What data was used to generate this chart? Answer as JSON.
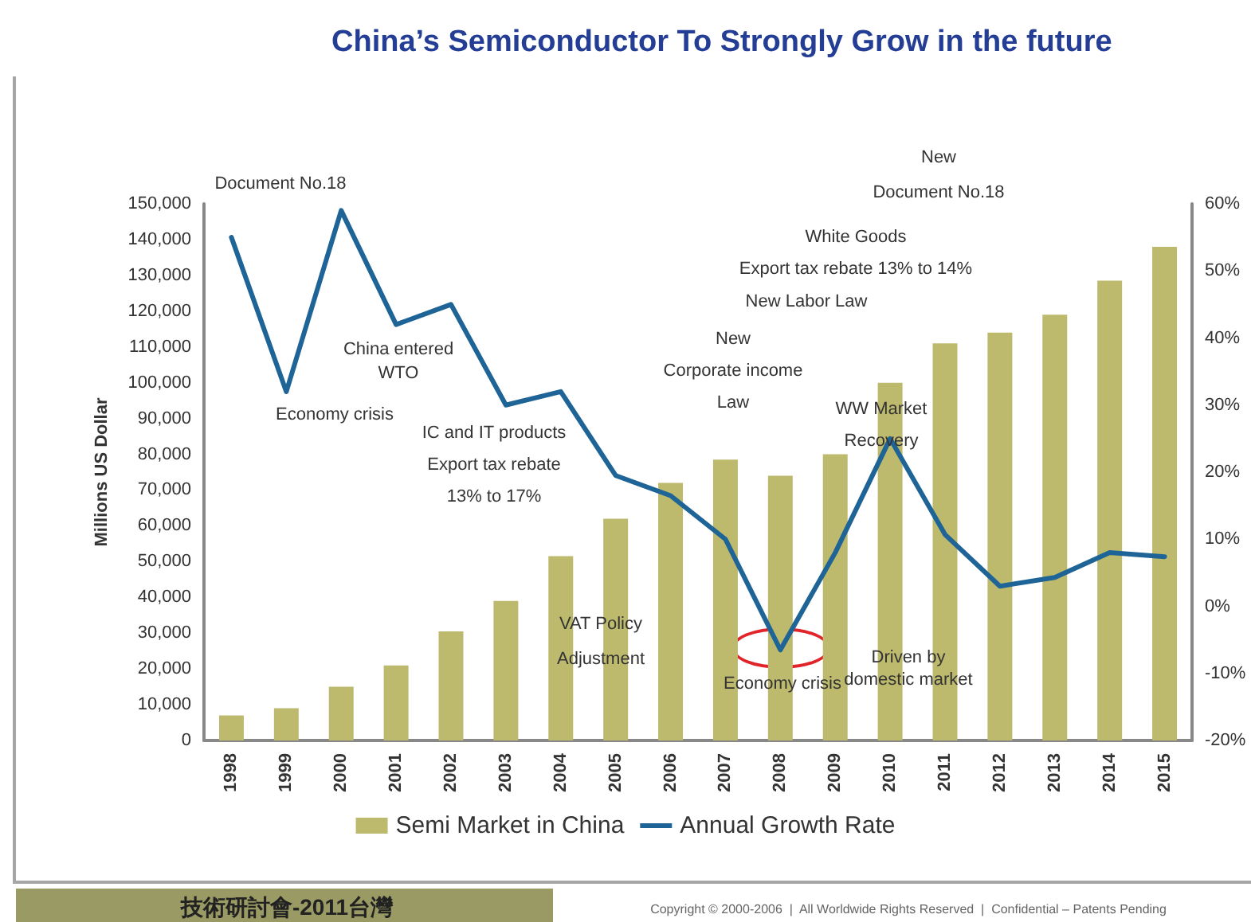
{
  "chart_data": {
    "type": "bar",
    "title": "China’s Semiconductor To Strongly Grow in the future",
    "ylabel": "Millions US Dollar",
    "categories": [
      "1998",
      "1999",
      "2000",
      "2001",
      "2002",
      "2003",
      "2004",
      "2005",
      "2006",
      "2007",
      "2008",
      "2009",
      "2010",
      "2011",
      "2012",
      "2013",
      "2014",
      "2015"
    ],
    "series": [
      {
        "name": "Semi Market in China",
        "color": "#bdba6e",
        "values": [
          7000,
          9000,
          15000,
          21000,
          30500,
          39000,
          51500,
          62000,
          72000,
          78500,
          74000,
          80000,
          100000,
          111000,
          114000,
          119000,
          128500,
          138000
        ]
      },
      {
        "name": "Annual Growth Rate",
        "type": "line",
        "axis": "y2",
        "color": "#1f6496",
        "values": [
          55,
          32,
          59,
          42,
          45,
          30,
          32,
          19.5,
          16.5,
          10,
          -6.5,
          8,
          25,
          10.7,
          3,
          4.3,
          8,
          7.4
        ]
      }
    ],
    "ylim": [
      0,
      150000
    ],
    "yticks": [
      {
        "value": 0,
        "label": "0"
      },
      {
        "value": 10000,
        "label": "10,000"
      },
      {
        "value": 20000,
        "label": "20,000"
      },
      {
        "value": 30000,
        "label": "30,000"
      },
      {
        "value": 40000,
        "label": "40,000"
      },
      {
        "value": 50000,
        "label": "50,000"
      },
      {
        "value": 60000,
        "label": "60,000"
      },
      {
        "value": 70000,
        "label": "70,000"
      },
      {
        "value": 80000,
        "label": "80,000"
      },
      {
        "value": 90000,
        "label": "90,000"
      },
      {
        "value": 100000,
        "label": "100,000"
      },
      {
        "value": 110000,
        "label": "110,000"
      },
      {
        "value": 120000,
        "label": "120,000"
      },
      {
        "value": 130000,
        "label": "130,000"
      },
      {
        "value": 140000,
        "label": "140,000"
      },
      {
        "value": 150000,
        "label": "150,000"
      }
    ],
    "y2lim": [
      -20,
      60
    ],
    "y2ticks": [
      {
        "value": -20,
        "label": "-20%"
      },
      {
        "value": -10,
        "label": "-10%"
      },
      {
        "value": 0,
        "label": "0%"
      },
      {
        "value": 10,
        "label": "10%"
      },
      {
        "value": 20,
        "label": "20%"
      },
      {
        "value": 30,
        "label": "30%"
      },
      {
        "value": 40,
        "label": "40%"
      },
      {
        "value": 50,
        "label": "50%"
      },
      {
        "value": 60,
        "label": "60%"
      }
    ],
    "annotations": [
      "Document No.18",
      "Economy crisis",
      "China entered\nWTO",
      "IC and IT products\nExport tax rebate\n13% to 17%",
      "VAT Policy\nAdjustment",
      "New\nCorporate income\nLaw",
      "New Labor Law",
      "White Goods\nExport tax rebate 13% to 14%",
      "New\nDocument No.18",
      "WW Market\nRecovery",
      "Driven by\ndomestic market",
      "Economy crisis",
      "技術研討會-2011台灣",
      "Copyright © 2000-2006  |  All Worldwide Rights Reserved  |  Confidential – Patents Pending"
    ],
    "legend": "bottom",
    "grid": false,
    "marker": "none",
    "line_style": "solid"
  }
}
